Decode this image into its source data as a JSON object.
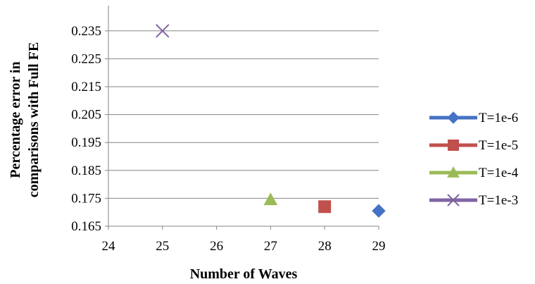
{
  "chart_data": {
    "type": "scatter",
    "title": "",
    "xlabel": "Number of Waves",
    "ylabel_lines": [
      "Percentage error in",
      "comparisons with Full FE"
    ],
    "xlim": [
      24,
      29
    ],
    "ylim": [
      0.165,
      0.24
    ],
    "x_ticks": [
      "24",
      "25",
      "26",
      "27",
      "28",
      "29"
    ],
    "y_ticks": [
      "0.165",
      "0.175",
      "0.185",
      "0.195",
      "0.205",
      "0.215",
      "0.225",
      "0.235"
    ],
    "grid": "horizontal",
    "legend_position": "right",
    "series": [
      {
        "name": "T=1e-6",
        "color": "#4472C4",
        "marker": "diamond",
        "points": [
          {
            "x": 29,
            "y": 0.1705
          }
        ]
      },
      {
        "name": "T=1e-5",
        "color": "#C0504D",
        "marker": "square",
        "points": [
          {
            "x": 28,
            "y": 0.172
          }
        ]
      },
      {
        "name": "T=1e-4",
        "color": "#9BBB59",
        "marker": "triangle",
        "points": [
          {
            "x": 27,
            "y": 0.1745
          }
        ]
      },
      {
        "name": "T=1e-3",
        "color": "#8064A2",
        "marker": "x",
        "points": [
          {
            "x": 25,
            "y": 0.235
          }
        ]
      }
    ]
  }
}
